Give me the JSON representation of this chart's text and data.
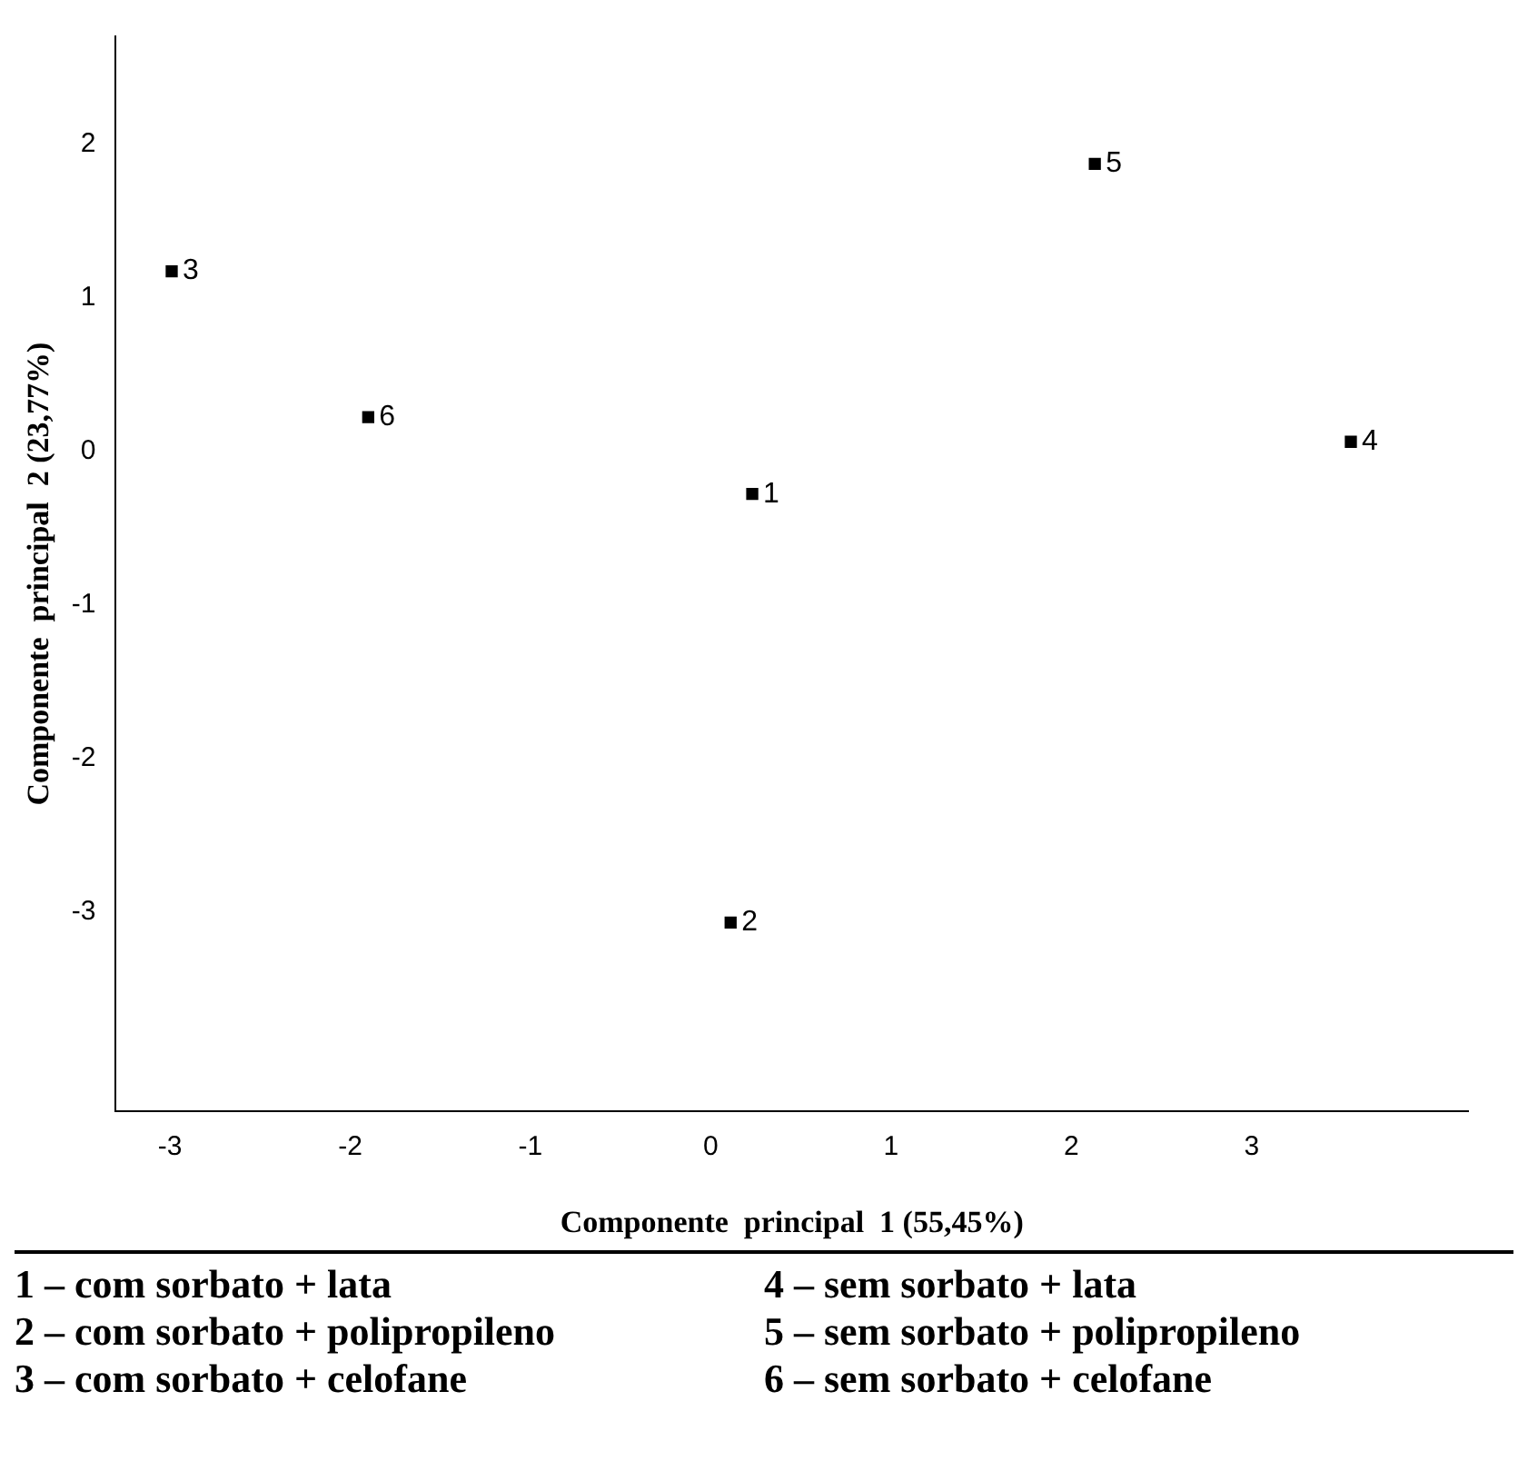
{
  "chart_data": {
    "type": "scatter",
    "xlabel": "Componente  principal  1 (55,45%)",
    "ylabel": "Componente  principal  2 (23,77%)",
    "x": [
      0.23,
      0.11,
      -2.99,
      3.55,
      2.13,
      -1.9
    ],
    "values": [
      -0.28,
      -3.07,
      1.17,
      0.06,
      1.87,
      0.22
    ],
    "color": "#000000",
    "marker": "square",
    "xlim": [
      -3.3,
      4.2
    ],
    "ylim": [
      -4.3,
      2.7
    ],
    "xticks": [
      -3,
      -2,
      -1,
      0,
      1,
      2,
      3
    ],
    "yticks": [
      -3,
      -2,
      -1,
      0,
      1,
      2
    ],
    "grid": false,
    "annotations": [
      {
        "text": "1",
        "x": 0.23,
        "y": -0.28
      },
      {
        "text": "2",
        "x": 0.11,
        "y": -3.07
      },
      {
        "text": "3",
        "x": -2.99,
        "y": 1.17
      },
      {
        "text": "4",
        "x": 3.55,
        "y": 0.06
      },
      {
        "text": "5",
        "x": 2.13,
        "y": 1.87
      },
      {
        "text": "6",
        "x": -1.9,
        "y": 0.22
      },
      "1 – com sorbato + lata",
      "4 – sem sorbato + lata",
      "2 – com sorbato + polipropileno",
      "5 – sem sorbato + polipropileno",
      "3 – com sorbato + celofane",
      "6 – sem sorbato + celofane"
    ]
  }
}
